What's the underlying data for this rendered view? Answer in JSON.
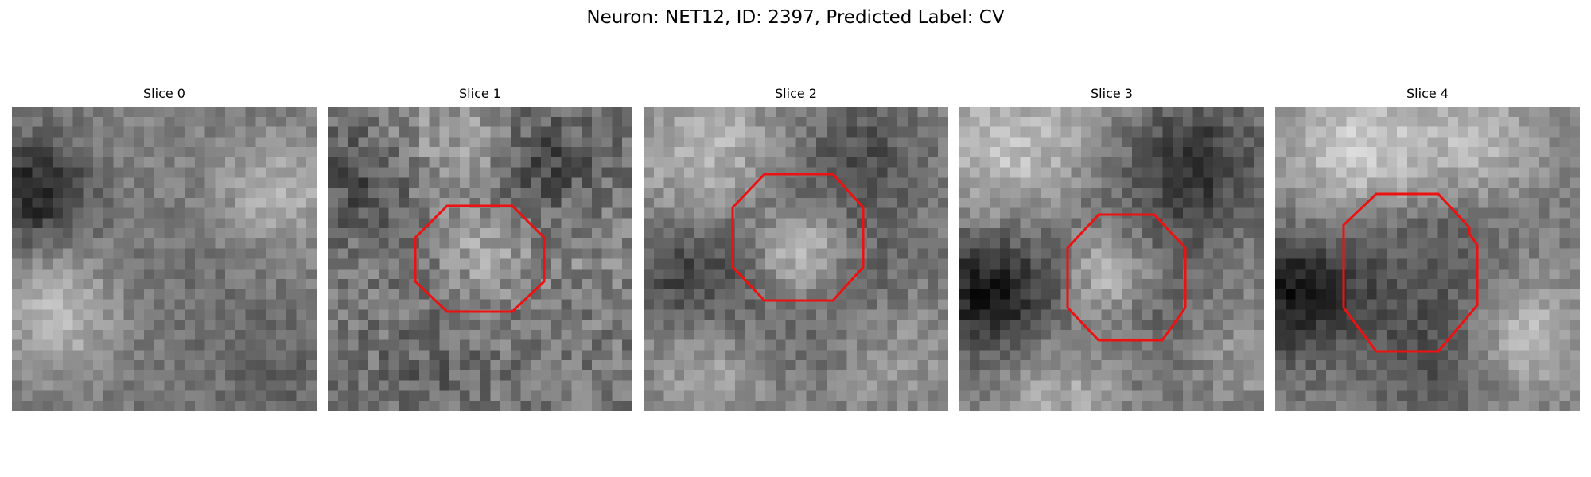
{
  "figure": {
    "title": "Neuron: NET12, ID: 2397, Predicted Label: CV"
  },
  "slices": [
    {
      "label": "Slice 0",
      "has_outline": false
    },
    {
      "label": "Slice 1",
      "has_outline": true
    },
    {
      "label": "Slice 2",
      "has_outline": true
    },
    {
      "label": "Slice 3",
      "has_outline": true
    },
    {
      "label": "Slice 4",
      "has_outline": true
    }
  ],
  "colors": {
    "outline": "#ee1111",
    "background": "#ffffff"
  }
}
